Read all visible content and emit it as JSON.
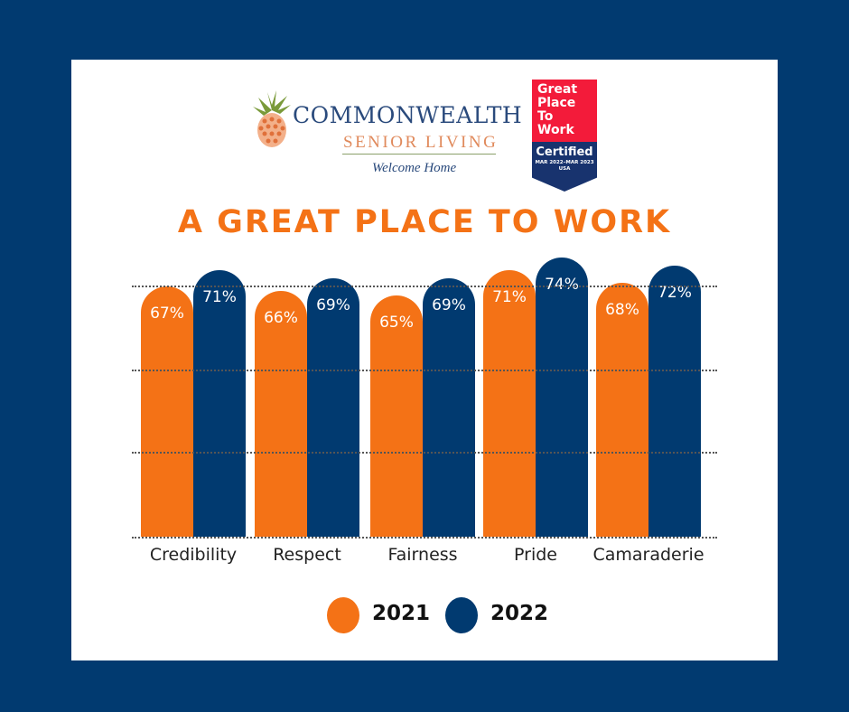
{
  "logo": {
    "brand_line1": "Commonwealth",
    "brand_line2": "Senior Living",
    "tagline": "Welcome Home"
  },
  "badge": {
    "line1": "Great",
    "line2": "Place",
    "line3": "To",
    "line4": "Work",
    "certified": "Certified",
    "dates": "MAR 2022–MAR 2023",
    "country": "USA"
  },
  "chart_data": {
    "type": "bar",
    "title": "A GREAT PLACE TO WORK",
    "categories": [
      "Credibility",
      "Respect",
      "Fairness",
      "Pride",
      "Camaraderie"
    ],
    "series": [
      {
        "name": "2021",
        "color": "#f47216",
        "values": [
          67,
          66,
          65,
          71,
          68
        ],
        "labels": [
          "67%",
          "66%",
          "65%",
          "71%",
          "68%"
        ]
      },
      {
        "name": "2022",
        "color": "#013a70",
        "values": [
          71,
          69,
          69,
          74,
          72
        ],
        "labels": [
          "71%",
          "69%",
          "69%",
          "74%",
          "72%"
        ]
      }
    ],
    "ylim": [
      8,
      75
    ],
    "grid": true,
    "legend": "bottom"
  }
}
